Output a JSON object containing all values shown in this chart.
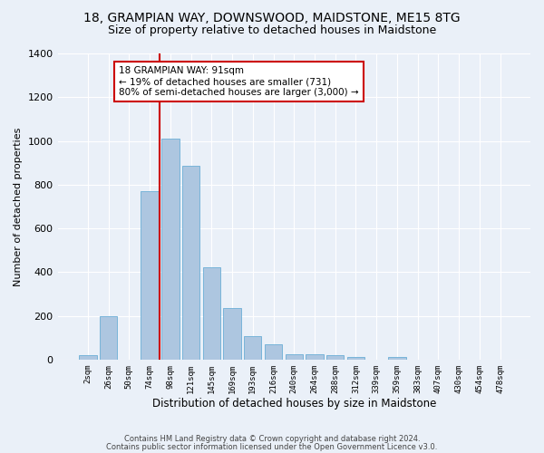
{
  "title1": "18, GRAMPIAN WAY, DOWNSWOOD, MAIDSTONE, ME15 8TG",
  "title2": "Size of property relative to detached houses in Maidstone",
  "xlabel": "Distribution of detached houses by size in Maidstone",
  "ylabel": "Number of detached properties",
  "bar_color": "#adc6e0",
  "bar_edgecolor": "#6baed6",
  "categories": [
    "2sqm",
    "26sqm",
    "50sqm",
    "74sqm",
    "98sqm",
    "121sqm",
    "145sqm",
    "169sqm",
    "193sqm",
    "216sqm",
    "240sqm",
    "264sqm",
    "288sqm",
    "312sqm",
    "339sqm",
    "359sqm",
    "383sqm",
    "407sqm",
    "430sqm",
    "454sqm",
    "478sqm"
  ],
  "values": [
    20,
    200,
    0,
    770,
    1010,
    885,
    420,
    235,
    108,
    68,
    25,
    25,
    22,
    10,
    0,
    10,
    0,
    0,
    0,
    0,
    0
  ],
  "property_line_x": 3.5,
  "annotation_text": "18 GRAMPIAN WAY: 91sqm\n← 19% of detached houses are smaller (731)\n80% of semi-detached houses are larger (3,000) →",
  "annotation_box_color": "#ffffff",
  "annotation_border_color": "#cc0000",
  "vline_color": "#cc0000",
  "footer1": "Contains HM Land Registry data © Crown copyright and database right 2024.",
  "footer2": "Contains public sector information licensed under the Open Government Licence v3.0.",
  "bg_color": "#eaf0f8",
  "plot_bg_color": "#eaf0f8",
  "ylim": [
    0,
    1400
  ],
  "title_fontsize": 10,
  "subtitle_fontsize": 9,
  "annotation_fontsize": 7.5
}
